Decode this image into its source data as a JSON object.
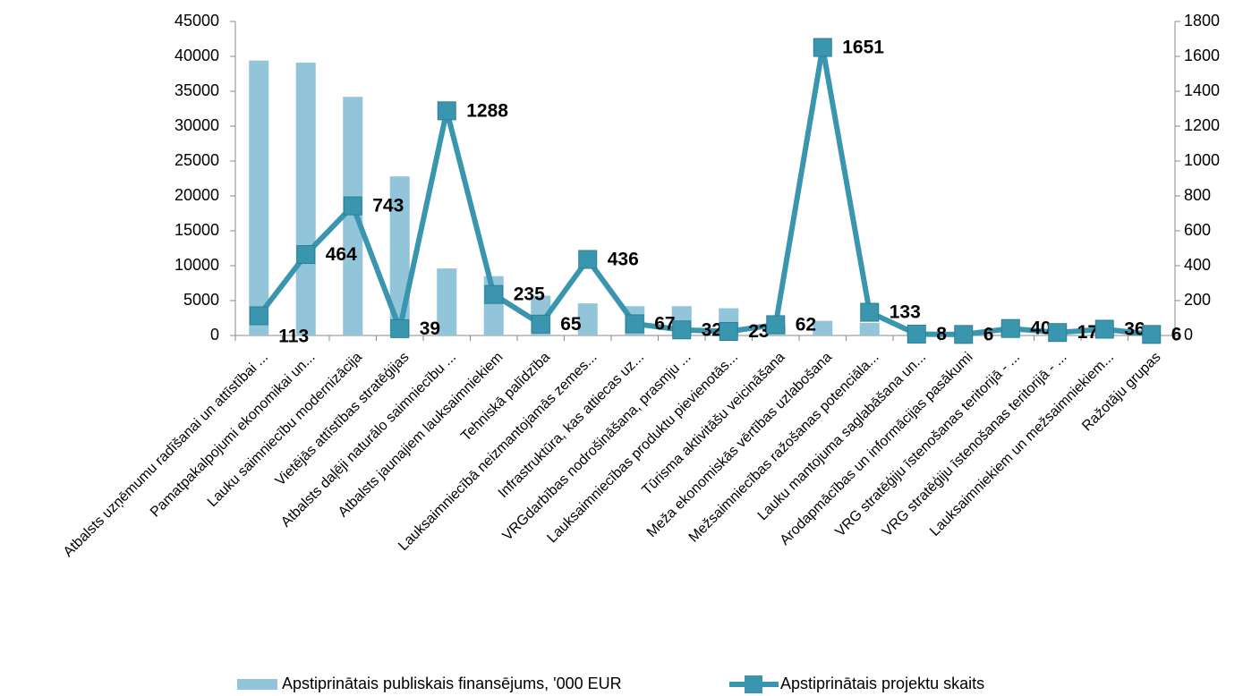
{
  "chart_data": {
    "type": "bar_line",
    "categories": [
      "Atbalsts uzņēmumu radīšanai un attīstībai ...",
      "Pamatpakalpojumi ekonomikai un...",
      "Lauku saimniecību modernizācija",
      "Vietējās attīstības stratēģijas",
      "Atbalsts daļēji naturālo saimniecību ...",
      "Atbalsts jaunajiem lauksaimniekiem",
      "Tehniskā palīdzība",
      "Lauksaimniecībā neizmantojamās zemes...",
      "Infrastruktūra, kas attiecas uz...",
      "VRGdarbības nodrošināšana, prasmju ...",
      "Lauksaimniecības produktu pievienotās...",
      "Tūrisma aktivitāšu veicināšana",
      "Meža ekonomiskās vērtības uzlabošana",
      "Mežsaimniecības ražošanas potenciāla...",
      "Lauku mantojuma saglabāšana un...",
      "Arodapmācības un informācijas pasākumi",
      "VRG stratēģiju īstenošanas teritorijā - ...",
      "VRG stratēģiju īstenošanas teritorijā - ...",
      "Lauksaimniekiem un mežsaimniekiem...",
      "Ražotāju grupas"
    ],
    "series": [
      {
        "name": "Apstiprinātais publiskais finansējums, '000 EUR",
        "color": "#92c5d9",
        "chart_type": "bar",
        "values": [
          39400,
          39100,
          34200,
          22800,
          9600,
          8500,
          5700,
          4600,
          4200,
          4200,
          3900,
          1500,
          2100,
          1800,
          400,
          300,
          500,
          200,
          400,
          100
        ]
      },
      {
        "name": "Apstiprinātais projektu skaits",
        "color": "#3a96ae",
        "chart_type": "line",
        "axis": "y2",
        "values": [
          113,
          464,
          743,
          39,
          1288,
          235,
          65,
          436,
          67,
          32,
          23,
          62,
          1651,
          133,
          8,
          6,
          40,
          17,
          36,
          6
        ]
      }
    ],
    "ylim": [
      0,
      45000
    ],
    "yticks": [
      0,
      5000,
      10000,
      15000,
      20000,
      25000,
      30000,
      35000,
      40000,
      45000
    ],
    "y2lim": [
      0,
      1800
    ],
    "y2ticks": [
      0,
      200,
      400,
      600,
      800,
      1000,
      1200,
      1400,
      1600,
      1800
    ],
    "legend": "bottom"
  }
}
